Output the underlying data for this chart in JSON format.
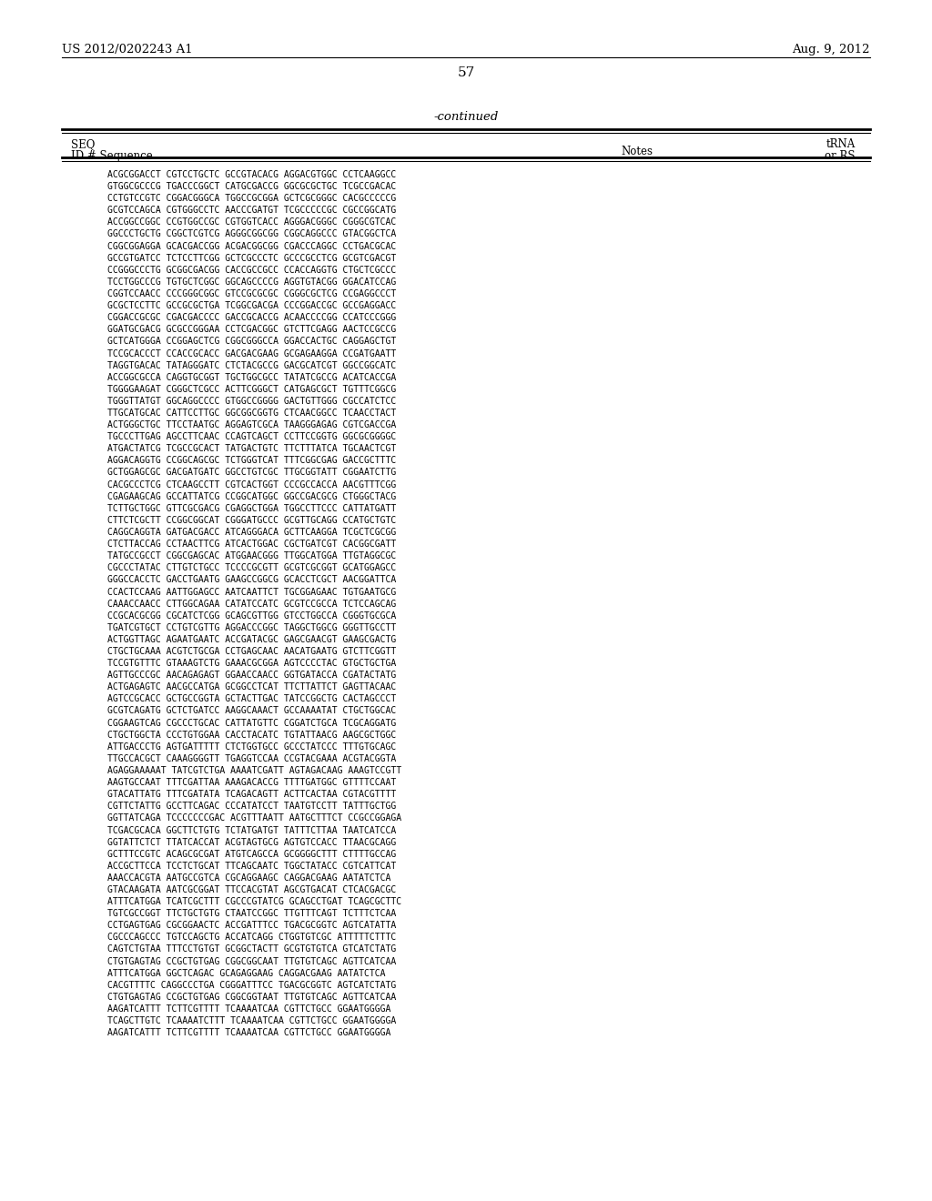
{
  "patent_number": "US 2012/0202243 A1",
  "date": "Aug. 9, 2012",
  "page_number": "57",
  "continued_label": "-continued",
  "background_color": "#ffffff",
  "sequence_lines": [
    "ACGCGGACCT CGTCCTGCTC GCCGTACACG AGGACGTGGC CCTCAAGGCC",
    "GTGGCGCCCG TGACCCGGCT CATGCGACCG GGCGCGCTGC TCGCCGACAC",
    "CCTGTCCGTC CGGACGGGCA TGGCCGCGGA GCTCGCGGGC CACGCCCCCG",
    "GCGTCCAGCA CGTGGGCCTC AACCCGATGT TCGCCCCCGC CGCCGGCATG",
    "ACCGGCCGGC CCGTGGCCGC CGTGGTCACC AGGGACGGGC CGGGCGTCAC",
    "GGCCCTGCTG CGGCTCGTCG AGGGCGGCGG CGGCAGGCCC GTACGGCTCA",
    "CGGCGGAGGA GCACGACCGG ACGACGGCGG CGACCCAGGC CCTGACGCAC",
    "GCCGTGATCC TCTCCTTCGG GCTCGCCCTC GCCCGCCTCG GCGTCGACGT",
    "CCGGGCCCTG GCGGCGACGG CACCGCCGCC CCACCAGGTG CTGCTCGCCC",
    "TCCTGGCCCG TGTGCTCGGC GGCAGCCCCG AGGTGTACGG GGACATCCAG",
    "CGGTCCAACC CCCGGGCGGC GTCCGCGCGC CGGGCGCTCG CCGAGGCCCT",
    "GCGCTCCTTC GCCGCGCTGA TCGGCGACGA CCCGGACCGC GCCGAGGACC",
    "CGGACCGCGC CGACGACCCC GACCGCACCG ACAACCCCGG CCATCCCGGG",
    "GGATGCGACG GCGCCGGGAA CCTCGACGGC GTCTTCGAGG AACTCCGCCG",
    "GCTCATGGGA CCGGAGCTCG CGGCGGGCCA GGACCACTGC CAGGAGCTGT",
    "TCCGCACCCT CCACCGCACC GACGACGAAG GCGAGAAGGA CCGATGAATT",
    "TAGGTGACAC TATAGGGATC CTCTACGCCG GACGCATCGT GGCCGGCATC",
    "ACCGGCGCCA CAGGTGCGGT TGCTGGCGCC TATATCGCCG ACATCACCGA",
    "TGGGGAAGAT CGGGCTCGCC ACTTCGGGCT CATGAGCGCT TGTTTCGGCG",
    "TGGGTTATGT GGCAGGCCCC GTGGCCGGGG GACTGTTGGG CGCCATCTCC",
    "TTGCATGCAC CATTCCTTGC GGCGGCGGTG CTCAACGGCC TCAACCTACT",
    "ACTGGGCTGC TTCCTAATGC AGGAGTCGCA TAAGGGAGAG CGTCGACCGA",
    "TGCCCTTGAG AGCCTTCAAC CCAGTCAGCT CCTTCCGGTG GGCGCGGGGC",
    "ATGACTATCG TCGCCGCACT TATGACTGTC TTCTTTATCA TGCAACTCGT",
    "AGGACAGGTG CCGGCAGCGC TCTGGGTCAT TTTCGGCGAG GACCGCTTTC",
    "GCTGGAGCGC GACGATGATC GGCCTGTCGC TTGCGGTATT CGGAATCTTG",
    "CACGCCCTCG CTCAAGCCTT CGTCACTGGT CCCGCCACCA AACGTTTCGG",
    "CGAGAAGCAG GCCATTATCG CCGGCATGGC GGCCGACGCG CTGGGCTACG",
    "TCTTGCTGGC GTTCGCGACG CGAGGCTGGA TGGCCTTCCC CATTATGATT",
    "CTTCTCGCTT CCGGCGGCAT CGGGATGCCC GCGTTGCAGG CCATGCTGTC",
    "CAGGCAGGTA GATGACGACC ATCAGGGACA GCTTCAAGGA TCGCTCGCGG",
    "CTCTTACCAG CCTAACTTCG ATCACTGGAC CGCTGATCGT CACGGCGATT",
    "TATGCCGCCT CGGCGAGCAC ATGGAACGGG TTGGCATGGA TTGTAGGCGC",
    "CGCCCTATAC CTTGTCTGCC TCCCCGCGTT GCGTCGCGGT GCATGGAGCC",
    "GGGCCACCTC GACCTGAATG GAAGCCGGCG GCACCTCGCT AACGGATTCA",
    "CCACTCCAAG AATTGGAGCC AATCAATTCT TGCGGAGAAC TGTGAATGCG",
    "CAAACCAACC CTTGGCAGAA CATATCCATC GCGTCCGCCA TCTCCAGCAG",
    "CCGCACGCGG CGCATCTCGG GCAGCGTTGG GTCCTGGCCA CGGGTGCGCA",
    "TGATCGTGCT CCTGTCGTTG AGGACCCGGC TAGGCTGGCG GGGTTGCCTT",
    "ACTGGTTAGC AGAATGAATC ACCGATACGC GAGCGAACGT GAAGCGACTG",
    "CTGCTGCAAA ACGTCTGCGA CCTGAGCAAC AACATGAATG GTCTTCGGTT",
    "TCCGTGTTTC GTAAAGTCTG GAAACGCGGA AGTCCCCTAC GTGCTGCTGA",
    "AGTTGCCCGC AACAGAGAGT GGAACCAACC GGTGATACCA CGATACTATG",
    "ACTGAGAGTC AACGCCATGA GCGGCCTCAT TTCTTATTCT GAGTTACAAC",
    "AGTCCGCACC GCTGCCGGTA GCTACTTGAC TATCCGGCTG CACTAGCCCT",
    "GCGTCAGATG GCTCTGATCC AAGGCAAACT GCCAAAATAT CTGCTGGCAC",
    "CGGAAGTCAG CGCCCTGCAC CATTATGTTC CGGATCTGCA TCGCAGGATG",
    "CTGCTGGCTA CCCTGTGGAA CACCTACATC TGTATTAACG AAGCGCTGGC",
    "ATTGACCCTG AGTGATTTTT CTCTGGTGCC GCCCTATCCC TTTGTGCAGC",
    "TTGCCACGCT CAAAGGGGTT TGAGGTCCAA CCGTACGAAA ACGTACGGTA",
    "AGAGGAAAAAT TATCGTCTGA AAAATCGATT AGTAGACAAG AAAGTCCGTT",
    "AAGTGCCAAT TTTCGATTAA AAAGACACCG TTTTGATGGC GTTTTCCAAT",
    "GTACATTATG TTTCGATATA TCAGACAGTT ACTTCACTAA CGTACGTTTT",
    "CGTTCTATTG GCCTTCAGAC CCCATATCCT TAATGTCCTT TATTTGCTGG",
    "GGTTATCAGA TCCCCCCCGAC ACGTTTAATT AATGCTTTCT CCGCCGGAGA",
    "TCGACGCACA GGCTTCTGTG TCTATGATGT TATTTCTTAA TAATCATCCA",
    "GGTATTCTCT TTATCACCAT ACGTAGTGCG AGTGTCCACC TTAACGCAGG",
    "GCTTTCCGTC ACAGCGCGAT ATGTCAGCCA GCGGGGCTTT CTTTTGCCAG",
    "ACCGCTTCCA TCCTCTGCAT TTCAGCAATC TGGCTATACC CGTCATTCAT",
    "AAACCACGTA AATGCCGTCA CGCAGGAAGC CAGGACGAAG AATATCTCA",
    "GTACAAGATA AATCGCGGAT TTCCACGTAT AGCGTGACAT CTCACGACGC",
    "ATTTCATGGA TCATCGCTTT CGCCCGTATCG GCAGCCTGAT TCAGCGCTTC",
    "TGTCGCCGGT TTCTGCTGTG CTAATCCGGC TTGTTTCAGT TCTTTCTCAA",
    "CCTGAGTGAG CGCGGAACTC ACCGATTTCC TGACGCGGTC AGTCATATTA",
    "CGCCCAGCCC TGTCCAGCTG ACCATCAGG CTGGTGTCGC ATTTTTCTTTC",
    "CAGTCTGTAA TTTCCTGTGT GCGGCTACTT GCGTGTGTCA GTCATCTATG",
    "CTGTGAGTAG CCGCTGTGAG CGGCGGCAAT TTGTGTCAGC AGTTCATCAA",
    "ATTTCATGGA GGCTCAGAC GCAGAGGAAG CAGGACGAAG AATATCTCA",
    "CACGTTTTC CAGGCCCTGA CGGGATTTCC TGACGCGGTC AGTCATCTATG",
    "CTGTGAGTAG CCGCTGTGAG CGGCGGTAAT TTGTGTCAGC AGTTCATCAA",
    "AAGATCATTT TCTTCGTTTT TCAAAATCAA CGTTCTGCC GGAATGGGGA",
    "TCAGCTTGTC TCAAAATCTTT TCAAAATCAA CGTTCTGCC GGAATGGGGA",
    "AAGATCATTT TCTTCGTTTT TCAAAATCAA CGTTCTGCC GGAATGGGGA"
  ]
}
